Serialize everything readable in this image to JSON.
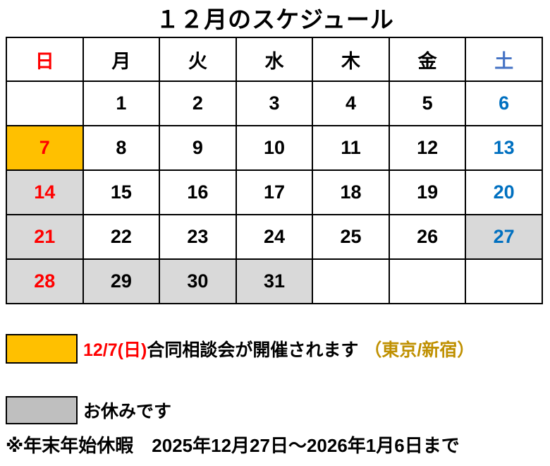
{
  "title": "１２月のスケジュール",
  "calendar": {
    "day_headers": [
      {
        "label": "日",
        "type": "sun-header"
      },
      {
        "label": "月",
        "type": ""
      },
      {
        "label": "火",
        "type": ""
      },
      {
        "label": "水",
        "type": ""
      },
      {
        "label": "木",
        "type": ""
      },
      {
        "label": "金",
        "type": ""
      },
      {
        "label": "土",
        "type": "sat-header"
      }
    ],
    "weeks": [
      [
        {
          "text": "",
          "styles": []
        },
        {
          "text": "1",
          "styles": []
        },
        {
          "text": "2",
          "styles": []
        },
        {
          "text": "3",
          "styles": []
        },
        {
          "text": "4",
          "styles": []
        },
        {
          "text": "5",
          "styles": []
        },
        {
          "text": "6",
          "styles": [
            "sat"
          ]
        }
      ],
      [
        {
          "text": "7",
          "styles": [
            "event",
            "sun"
          ]
        },
        {
          "text": "8",
          "styles": []
        },
        {
          "text": "9",
          "styles": []
        },
        {
          "text": "10",
          "styles": []
        },
        {
          "text": "11",
          "styles": []
        },
        {
          "text": "12",
          "styles": []
        },
        {
          "text": "13",
          "styles": [
            "sat"
          ]
        }
      ],
      [
        {
          "text": "14",
          "styles": [
            "holiday",
            "sun"
          ]
        },
        {
          "text": "15",
          "styles": []
        },
        {
          "text": "16",
          "styles": []
        },
        {
          "text": "17",
          "styles": []
        },
        {
          "text": "18",
          "styles": []
        },
        {
          "text": "19",
          "styles": []
        },
        {
          "text": "20",
          "styles": [
            "sat"
          ]
        }
      ],
      [
        {
          "text": "21",
          "styles": [
            "holiday",
            "sun"
          ]
        },
        {
          "text": "22",
          "styles": []
        },
        {
          "text": "23",
          "styles": []
        },
        {
          "text": "24",
          "styles": []
        },
        {
          "text": "25",
          "styles": []
        },
        {
          "text": "26",
          "styles": []
        },
        {
          "text": "27",
          "styles": [
            "holiday",
            "sat"
          ]
        }
      ],
      [
        {
          "text": "28",
          "styles": [
            "holiday",
            "sun"
          ]
        },
        {
          "text": "29",
          "styles": [
            "holiday"
          ]
        },
        {
          "text": "30",
          "styles": [
            "holiday"
          ]
        },
        {
          "text": "31",
          "styles": [
            "holiday"
          ]
        },
        {
          "text": "",
          "styles": []
        },
        {
          "text": "",
          "styles": []
        },
        {
          "text": "",
          "styles": []
        }
      ]
    ]
  },
  "legend": {
    "event": {
      "swatch_color": "#FFC000",
      "parts": [
        {
          "text": "12/7(日)",
          "color": "#FF0000"
        },
        {
          "text": "合同相談会が開催されます",
          "color": "#000000"
        },
        {
          "text": "（東京/新宿）",
          "color": "#BF9000"
        }
      ]
    },
    "holiday": {
      "swatch_color": "#BFBFBF",
      "label": "お休みです"
    }
  },
  "note": "※年末年始休暇　2025年12月27日～2026年1月6日まで",
  "colors": {
    "sunday_text": "#FF0000",
    "saturday_header_text": "#4472C4",
    "saturday_number_text": "#0070C0",
    "event_cell_bg": "#FFC000",
    "holiday_cell_bg": "#D9D9D9",
    "legend_holiday_swatch": "#BFBFBF",
    "venue_text": "#BF9000",
    "border": "#000000"
  }
}
